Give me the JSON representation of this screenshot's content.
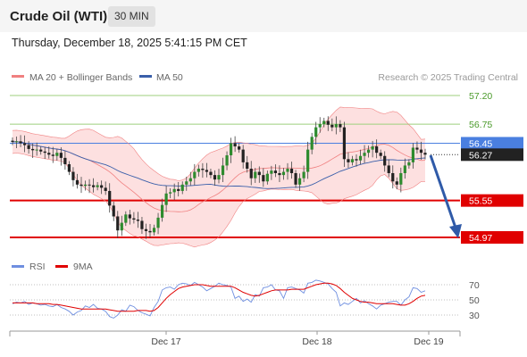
{
  "header": {
    "title": "Crude Oil (WTI)",
    "interval": "30 MIN"
  },
  "timestamp": "Thursday, December 18, 2025 5:41:15 PM CET",
  "legend": {
    "bollinger": "MA 20 + Bollinger Bands",
    "ma50": "MA 50",
    "credit": "Research © 2025 Trading Central"
  },
  "rsi_legend": {
    "rsi": "RSI",
    "ma9": "9MA"
  },
  "colors": {
    "bollinger": "#f08080",
    "ma50": "#3a5faa",
    "band_fill": "#fde0e0",
    "resistance": "#9ccf7c",
    "support": "#e00000",
    "current": "#4a7fe0",
    "candle": "#2e8b2e",
    "arrow": "#2f5aa8",
    "rsi": "#6f8fe0",
    "rsi_ma": "#e00000"
  },
  "chart_data": {
    "type": "candlestick",
    "x_ticks": [
      "Dec 17",
      "Dec 18",
      "Dec 19"
    ],
    "price_levels": [
      {
        "value": 57.2,
        "label": "57.20",
        "kind": "resistance"
      },
      {
        "value": 56.75,
        "label": "56.75",
        "kind": "resistance"
      },
      {
        "value": 56.45,
        "label": "56.45",
        "kind": "current"
      },
      {
        "value": 56.27,
        "label": "56.27",
        "kind": "last"
      },
      {
        "value": 55.55,
        "label": "55.55",
        "kind": "support"
      },
      {
        "value": 54.97,
        "label": "54.97",
        "kind": "support"
      }
    ],
    "closes": [
      56.47,
      56.48,
      56.45,
      56.42,
      56.36,
      56.34,
      56.35,
      56.32,
      56.3,
      56.27,
      56.25,
      56.3,
      56.22,
      56.12,
      56.0,
      55.87,
      55.8,
      55.78,
      55.8,
      55.79,
      55.76,
      55.79,
      55.75,
      55.7,
      55.47,
      55.3,
      55.08,
      55.2,
      55.33,
      55.27,
      55.25,
      55.23,
      55.1,
      55.07,
      55.05,
      55.12,
      55.28,
      55.48,
      55.66,
      55.68,
      55.73,
      55.7,
      55.8,
      55.85,
      55.9,
      56.0,
      56.05,
      56.03,
      56.0,
      55.95,
      55.88,
      55.95,
      56.1,
      56.26,
      56.45,
      56.4,
      56.35,
      56.15,
      56.05,
      55.9,
      56.0,
      55.95,
      55.85,
      55.97,
      56.02,
      55.98,
      55.95,
      56.0,
      56.05,
      55.98,
      55.8,
      55.9,
      56.0,
      56.35,
      56.55,
      56.7,
      56.75,
      56.8,
      56.74,
      56.7,
      56.75,
      56.7,
      56.2,
      56.15,
      56.2,
      56.18,
      56.25,
      56.3,
      56.35,
      56.4,
      56.3,
      56.25,
      56.1,
      55.98,
      55.85,
      55.8,
      55.98,
      56.1,
      56.15,
      56.38,
      56.35,
      56.3,
      56.27
    ],
    "rsi_axis": [
      70,
      50,
      30
    ],
    "rsi": [
      45,
      47,
      46,
      48,
      44,
      46,
      45,
      43,
      44,
      42,
      41,
      44,
      40,
      38,
      35,
      30,
      34,
      36,
      42,
      40,
      44,
      39,
      38,
      35,
      28,
      26,
      30,
      37,
      35,
      43,
      41,
      36,
      33,
      31,
      29,
      40,
      48,
      63,
      66,
      67,
      64,
      70,
      72,
      71,
      69,
      73,
      70,
      67,
      62,
      65,
      68,
      72,
      70,
      69,
      67,
      52,
      55,
      48,
      51,
      47,
      57,
      55,
      66,
      67,
      70,
      63,
      62,
      52,
      66,
      67,
      65,
      63,
      59,
      72,
      73,
      76,
      75,
      73,
      71,
      65,
      60,
      42,
      46,
      44,
      48,
      52,
      46,
      49,
      45,
      42,
      38,
      43,
      45,
      47,
      48,
      48,
      43,
      50,
      54,
      66,
      65,
      60,
      62
    ],
    "rsi_ma": [
      46,
      46,
      46,
      46,
      46,
      46,
      45,
      45,
      45,
      45,
      44,
      44,
      43,
      42,
      41,
      40,
      39,
      38,
      38,
      38,
      38,
      38,
      38,
      38,
      37,
      36,
      35,
      35,
      35,
      35,
      35,
      36,
      36,
      36,
      35,
      36,
      40,
      46,
      52,
      57,
      61,
      65,
      67,
      68,
      69,
      70,
      70,
      70,
      69,
      68,
      68,
      68,
      68,
      68,
      68,
      66,
      63,
      60,
      58,
      56,
      55,
      56,
      58,
      60,
      62,
      63,
      63,
      63,
      63,
      64,
      64,
      64,
      64,
      66,
      68,
      70,
      71,
      72,
      72,
      71,
      69,
      65,
      60,
      56,
      52,
      50,
      48,
      47,
      47,
      46,
      45,
      45,
      45,
      45,
      45,
      44,
      43,
      43,
      45,
      48,
      52,
      55,
      56
    ]
  }
}
